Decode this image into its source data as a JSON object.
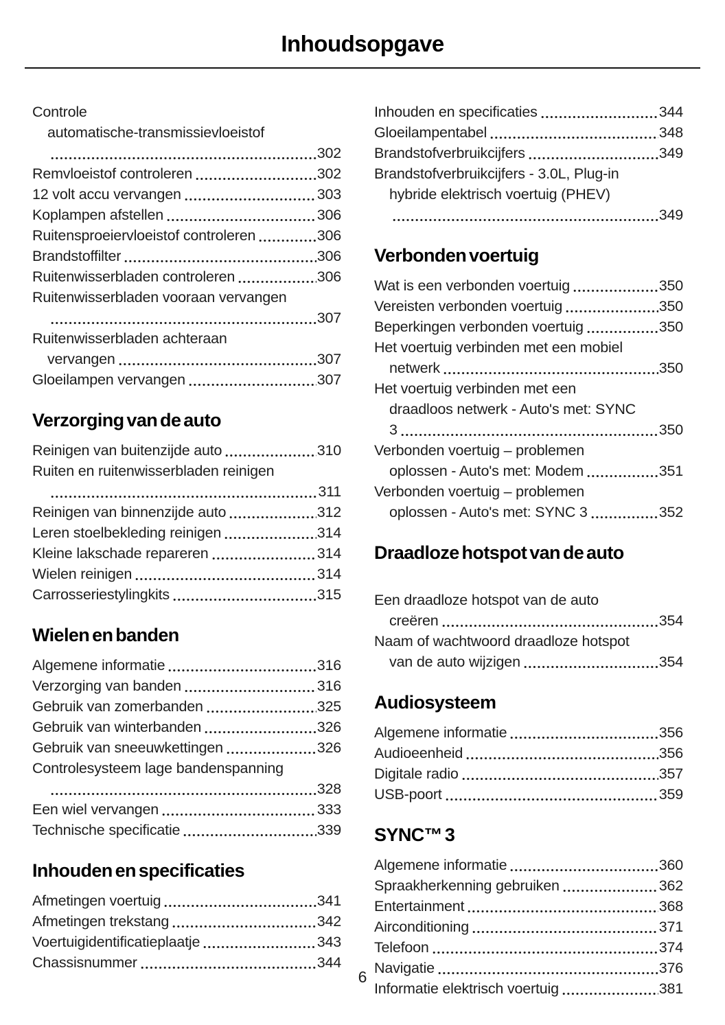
{
  "page": {
    "title": "Inhoudsopgave",
    "footer_page_number": "6"
  },
  "toc": {
    "columns": [
      {
        "blocks": [
          {
            "type": "entry",
            "pre": [
              "Controle",
              "automatische-transmissievloeistof"
            ],
            "last": "",
            "page": "302"
          },
          {
            "type": "entry",
            "pre": [],
            "last": "Remvloeistof controleren",
            "page": "302"
          },
          {
            "type": "entry",
            "pre": [],
            "last": "12 volt accu vervangen",
            "page": "303"
          },
          {
            "type": "entry",
            "pre": [],
            "last": "Koplampen afstellen",
            "page": "306"
          },
          {
            "type": "entry",
            "pre": [],
            "last": "Ruitensproeiervloeistof controleren",
            "page": "306"
          },
          {
            "type": "entry",
            "pre": [],
            "last": "Brandstoffilter",
            "page": "306"
          },
          {
            "type": "entry",
            "pre": [],
            "last": "Ruitenwisserbladen controleren",
            "page": "306"
          },
          {
            "type": "entry",
            "pre": [
              "Ruitenwisserbladen vooraan vervangen"
            ],
            "last": "",
            "page": "307"
          },
          {
            "type": "entry",
            "pre": [
              "Ruitenwisserbladen achteraan"
            ],
            "last": "vervangen",
            "page": "307"
          },
          {
            "type": "entry",
            "pre": [],
            "last": "Gloeilampen vervangen",
            "page": "307"
          },
          {
            "type": "heading",
            "text": "Verzorging van de auto"
          },
          {
            "type": "entry",
            "pre": [],
            "last": "Reinigen van buitenzijde auto",
            "page": "310"
          },
          {
            "type": "entry",
            "pre": [
              "Ruiten en ruitenwisserbladen reinigen"
            ],
            "last": "",
            "page": "311"
          },
          {
            "type": "entry",
            "pre": [],
            "last": "Reinigen van binnenzijde auto",
            "page": "312"
          },
          {
            "type": "entry",
            "pre": [],
            "last": "Leren stoelbekleding reinigen",
            "page": "314"
          },
          {
            "type": "entry",
            "pre": [],
            "last": "Kleine lakschade repareren",
            "page": "314"
          },
          {
            "type": "entry",
            "pre": [],
            "last": "Wielen reinigen",
            "page": "314"
          },
          {
            "type": "entry",
            "pre": [],
            "last": "Carrosseriestylingkits",
            "page": "315"
          },
          {
            "type": "heading",
            "text": "Wielen en banden"
          },
          {
            "type": "entry",
            "pre": [],
            "last": "Algemene informatie",
            "page": "316"
          },
          {
            "type": "entry",
            "pre": [],
            "last": "Verzorging van banden",
            "page": "316"
          },
          {
            "type": "entry",
            "pre": [],
            "last": "Gebruik van zomerbanden",
            "page": "325"
          },
          {
            "type": "entry",
            "pre": [],
            "last": "Gebruik van winterbanden",
            "page": "326"
          },
          {
            "type": "entry",
            "pre": [],
            "last": "Gebruik van sneeuwkettingen",
            "page": "326"
          },
          {
            "type": "entry",
            "pre": [
              "Controlesysteem lage bandenspanning"
            ],
            "last": "",
            "page": "328"
          },
          {
            "type": "entry",
            "pre": [],
            "last": "Een wiel vervangen",
            "page": "333"
          },
          {
            "type": "entry",
            "pre": [],
            "last": "Technische specificatie",
            "page": "339"
          },
          {
            "type": "heading",
            "text": "Inhouden en specificaties"
          },
          {
            "type": "entry",
            "pre": [],
            "last": "Afmetingen voertuig",
            "page": "341"
          },
          {
            "type": "entry",
            "pre": [],
            "last": "Afmetingen trekstang",
            "page": "342"
          },
          {
            "type": "entry",
            "pre": [],
            "last": "Voertuigidentificatieplaatje",
            "page": "343"
          },
          {
            "type": "entry",
            "pre": [],
            "last": "Chassisnummer",
            "page": "344"
          }
        ]
      },
      {
        "blocks": [
          {
            "type": "entry",
            "pre": [],
            "last": "Inhouden en specificaties",
            "page": "344"
          },
          {
            "type": "entry",
            "pre": [],
            "last": "Gloeilampentabel",
            "page": "348"
          },
          {
            "type": "entry",
            "pre": [],
            "last": "Brandstofverbruikcijfers",
            "page": "349"
          },
          {
            "type": "entry",
            "pre": [
              "Brandstofverbruikcijfers - 3.0L, Plug-in",
              "hybride elektrisch voertuig (PHEV)"
            ],
            "last": "",
            "page": "349"
          },
          {
            "type": "heading",
            "text": "Verbonden voertuig"
          },
          {
            "type": "entry",
            "pre": [],
            "last": "Wat is een verbonden voertuig",
            "page": "350"
          },
          {
            "type": "entry",
            "pre": [],
            "last": "Vereisten verbonden voertuig",
            "page": "350"
          },
          {
            "type": "entry",
            "pre": [],
            "last": "Beperkingen verbonden voertuig",
            "page": "350"
          },
          {
            "type": "entry",
            "pre": [
              "Het voertuig verbinden met een mobiel"
            ],
            "last": "netwerk",
            "page": "350"
          },
          {
            "type": "entry",
            "pre": [
              "Het voertuig verbinden met een",
              "draadloos netwerk - Auto's met: SYNC"
            ],
            "last": "3",
            "page": "350"
          },
          {
            "type": "entry",
            "pre": [
              "Verbonden voertuig – problemen"
            ],
            "last": "oplossen - Auto's met: Modem",
            "page": "351"
          },
          {
            "type": "entry",
            "pre": [
              "Verbonden voertuig – problemen"
            ],
            "last": "oplossen - Auto's met: SYNC 3",
            "page": "352"
          },
          {
            "type": "heading",
            "text": "Draadloze hotspot van de auto",
            "extra_gap": true
          },
          {
            "type": "entry",
            "pre": [
              "Een draadloze hotspot van de auto"
            ],
            "last": "creëren",
            "page": "354"
          },
          {
            "type": "entry",
            "pre": [
              "Naam of wachtwoord draadloze hotspot"
            ],
            "last": "van de auto wijzigen",
            "page": "354"
          },
          {
            "type": "heading",
            "text": "Audiosysteem"
          },
          {
            "type": "entry",
            "pre": [],
            "last": "Algemene informatie",
            "page": "356"
          },
          {
            "type": "entry",
            "pre": [],
            "last": "Audioeenheid",
            "page": "356"
          },
          {
            "type": "entry",
            "pre": [],
            "last": "Digitale radio",
            "page": "357"
          },
          {
            "type": "entry",
            "pre": [],
            "last": "USB-poort",
            "page": "359"
          },
          {
            "type": "heading",
            "text": "SYNC™ 3"
          },
          {
            "type": "entry",
            "pre": [],
            "last": "Algemene informatie",
            "page": "360"
          },
          {
            "type": "entry",
            "pre": [],
            "last": "Spraakherkenning gebruiken",
            "page": "362"
          },
          {
            "type": "entry",
            "pre": [],
            "last": "Entertainment",
            "page": "368"
          },
          {
            "type": "entry",
            "pre": [],
            "last": "Airconditioning",
            "page": "371"
          },
          {
            "type": "entry",
            "pre": [],
            "last": "Telefoon",
            "page": "374"
          },
          {
            "type": "entry",
            "pre": [],
            "last": "Navigatie",
            "page": "376"
          },
          {
            "type": "entry",
            "pre": [],
            "last": "Informatie elektrisch voertuig",
            "page": "381"
          }
        ]
      }
    ]
  }
}
